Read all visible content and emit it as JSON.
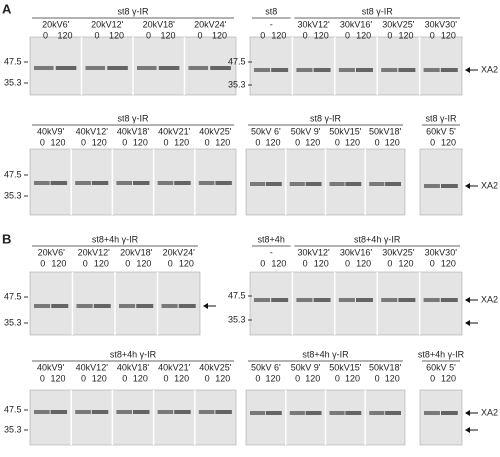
{
  "times": [
    "0",
    "120"
  ],
  "panels": [
    {
      "label": "A",
      "rows": [
        {
          "blocks": [
            {
              "groups": [
                {
                  "header": "st8 γ-IR",
                  "lanes": [
                    "20kV6'",
                    "20kV12'",
                    "20kV18'",
                    "20kV24'"
                  ]
                }
              ],
              "markers": [
                "47.5",
                "35.3"
              ]
            },
            {
              "groups": [
                {
                  "header": "st8",
                  "lanes": [
                    "-"
                  ]
                },
                {
                  "header": "st8 γ-IR",
                  "lanes": [
                    "30kV12'",
                    "30kV16'",
                    "30kV25'",
                    "30kV30'"
                  ]
                }
              ],
              "markers": [
                "47.5",
                "35.3"
              ],
              "target": "XA2"
            }
          ]
        },
        {
          "blocks": [
            {
              "groups": [
                {
                  "header": "st8 γ-IR",
                  "lanes": [
                    "40kV9'",
                    "40kV12'",
                    "40kV18'",
                    "40kV21'",
                    "40kV25'"
                  ]
                }
              ],
              "markers": [
                "47.5",
                "35.3"
              ]
            },
            {
              "groups": [
                {
                  "header": "st8 γ-IR",
                  "lanes": [
                    "50kV 6'",
                    "50kV 9'",
                    "50kV15'",
                    "50kV18'"
                  ]
                }
              ]
            },
            {
              "groups": [
                {
                  "header": "st8 γ-IR",
                  "lanes": [
                    "60kV 5'"
                  ]
                }
              ],
              "target": "XA2"
            }
          ]
        }
      ]
    },
    {
      "label": "B",
      "rows": [
        {
          "blocks": [
            {
              "groups": [
                {
                  "header": "st8+4h γ-IR",
                  "lanes": [
                    "20kV6'",
                    "20kV12'",
                    "20kV18'",
                    "20kV24'"
                  ]
                }
              ],
              "markers": [
                "47.5",
                "35.3"
              ]
            },
            {
              "groups": [
                {
                  "header": "st8+4h",
                  "lanes": [
                    "-"
                  ]
                },
                {
                  "header": "st8+4h γ-IR",
                  "lanes": [
                    "30kV12'",
                    "30kV16'",
                    "30kV25'",
                    "30kV30'"
                  ]
                }
              ],
              "markers": [
                "47.5",
                "35.3"
              ],
              "target": "XA2"
            }
          ]
        },
        {
          "blocks": [
            {
              "groups": [
                {
                  "header": "st8+4h γ-IR",
                  "lanes": [
                    "40kV9'",
                    "40kV12'",
                    "40kV18'",
                    "40kV21'",
                    "40kV25'"
                  ]
                }
              ],
              "markers": [
                "47.5",
                "35.3"
              ]
            },
            {
              "groups": [
                {
                  "header": "st8+4h γ-IR",
                  "lanes": [
                    "50kV 6'",
                    "50kV 9'",
                    "50kV15'",
                    "50kV18'"
                  ]
                }
              ]
            },
            {
              "groups": [
                {
                  "header": "st8+4h γ-IR",
                  "lanes": [
                    "60kV 5'"
                  ]
                }
              ],
              "target": "XA2"
            }
          ]
        }
      ]
    }
  ]
}
